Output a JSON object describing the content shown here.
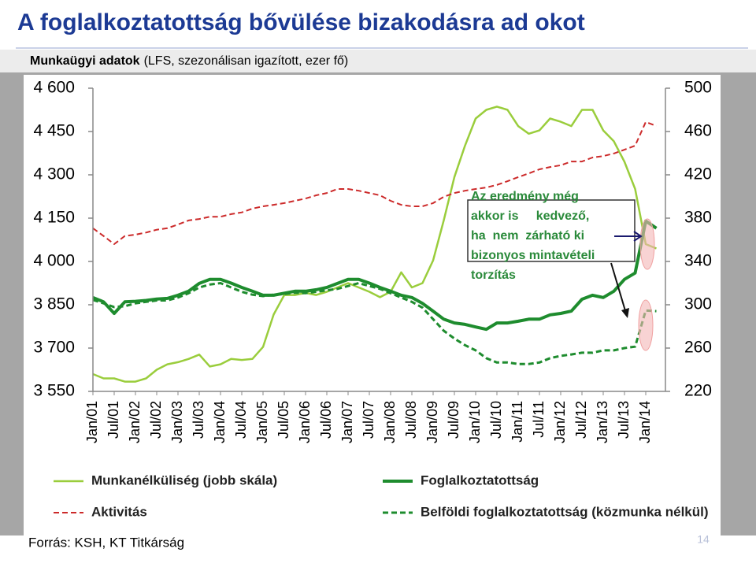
{
  "chart_data": {
    "type": "line",
    "title": "A foglalkoztatottság bővülése bizakodásra ad okot",
    "subtitle_bold": "Munkaügyi adatok",
    "subtitle": "(LFS, szezonálisan igazított, ezer fő)",
    "source": "Forrás: KSH, KT Titkárság",
    "page_number": "14",
    "annotation": [
      "Az eredmény még",
      "akkor is     kedvező,",
      "ha  nem  zárható ki",
      "bizonyos mintavételi",
      "torzítás"
    ],
    "categories": [
      "Jan/01",
      null,
      "Jul/01",
      null,
      "Jan/02",
      null,
      "Jul/02",
      null,
      "Jan/03",
      null,
      "Jul/03",
      null,
      "Jan/04",
      null,
      "Jul/04",
      null,
      "Jan/05",
      null,
      "Jul/05",
      null,
      "Jan/06",
      null,
      "Jul/06",
      null,
      "Jan/07",
      null,
      "Jul/07",
      null,
      "Jan/08",
      null,
      "Jul/08",
      null,
      "Jan/09",
      null,
      "Jul/09",
      null,
      "Jan/10",
      null,
      "Jul/10",
      null,
      "Jan/11",
      null,
      "Jul/11",
      null,
      "Jan/12",
      null,
      "Jul/12",
      null,
      "Jan/13",
      null,
      "Jul/13",
      null,
      "Jan/14",
      null
    ],
    "ylim": [
      3550,
      4600
    ],
    "yticks": [
      {
        "value": 3550,
        "label": "3 550"
      },
      {
        "value": 3700,
        "label": "3 700"
      },
      {
        "value": 3850,
        "label": "3 850"
      },
      {
        "value": 4000,
        "label": "4 000"
      },
      {
        "value": 4150,
        "label": "4 150"
      },
      {
        "value": 4300,
        "label": "4 300"
      },
      {
        "value": 4450,
        "label": "4 450"
      },
      {
        "value": 4600,
        "label": "4 600"
      }
    ],
    "y2lim": [
      220,
      500
    ],
    "y2ticks": [
      220,
      260,
      300,
      340,
      380,
      420,
      460,
      500
    ],
    "grid": false,
    "legend": "bottom",
    "series": [
      {
        "name": "Munkanélküliség (jobb skála)",
        "color": "#9acd3c",
        "dash": false,
        "width": 2.5,
        "axis": "y2",
        "values": [
          236,
          232,
          232,
          229,
          229,
          232,
          240,
          245,
          247,
          250,
          254,
          243,
          245,
          250,
          249,
          250,
          261,
          291,
          309,
          309,
          311,
          309,
          312,
          316,
          320,
          316,
          312,
          307,
          312,
          330,
          316,
          320,
          341,
          378,
          418,
          447,
          472,
          480,
          483,
          480,
          465,
          458,
          461,
          472,
          469,
          465,
          480,
          480,
          461,
          451,
          432,
          407,
          356,
          352
        ]
      },
      {
        "name": "Foglalkoztatottság",
        "color": "#1e8c2e",
        "dash": false,
        "width": 4,
        "values": [
          3875,
          3860,
          3820,
          3860,
          3862,
          3865,
          3870,
          3872,
          3883,
          3897,
          3924,
          3938,
          3938,
          3925,
          3910,
          3897,
          3883,
          3883,
          3890,
          3897,
          3897,
          3902,
          3910,
          3924,
          3938,
          3938,
          3925,
          3910,
          3897,
          3883,
          3875,
          3855,
          3828,
          3800,
          3787,
          3782,
          3773,
          3765,
          3787,
          3787,
          3793,
          3800,
          3800,
          3815,
          3820,
          3828,
          3869,
          3883,
          3875,
          3897,
          3938,
          3960,
          4140,
          4115
        ]
      },
      {
        "name": "Aktivitás",
        "color": "#cc2a2a",
        "dash": true,
        "width": 2,
        "values": [
          4115,
          4088,
          4060,
          4088,
          4093,
          4100,
          4110,
          4115,
          4128,
          4142,
          4147,
          4155,
          4155,
          4164,
          4170,
          4183,
          4191,
          4196,
          4202,
          4210,
          4218,
          4229,
          4237,
          4251,
          4251,
          4245,
          4237,
          4229,
          4210,
          4196,
          4191,
          4191,
          4202,
          4224,
          4237,
          4245,
          4251,
          4256,
          4265,
          4278,
          4292,
          4305,
          4319,
          4327,
          4333,
          4346,
          4346,
          4360,
          4365,
          4374,
          4387,
          4401,
          4483,
          4469
        ]
      },
      {
        "name": "Belföldi foglalkoztatottság (közmunka nélkül)",
        "color": "#1e8c2e",
        "dash": true,
        "width": 3,
        "values": [
          3867,
          3855,
          3842,
          3845,
          3855,
          3860,
          3865,
          3865,
          3875,
          3890,
          3910,
          3920,
          3925,
          3910,
          3895,
          3885,
          3880,
          3885,
          3887,
          3892,
          3890,
          3895,
          3900,
          3905,
          3915,
          3925,
          3915,
          3905,
          3890,
          3875,
          3860,
          3840,
          3800,
          3760,
          3733,
          3710,
          3692,
          3665,
          3650,
          3650,
          3645,
          3645,
          3650,
          3665,
          3673,
          3678,
          3684,
          3684,
          3692,
          3692,
          3700,
          3705,
          3830,
          3828
        ]
      }
    ]
  }
}
